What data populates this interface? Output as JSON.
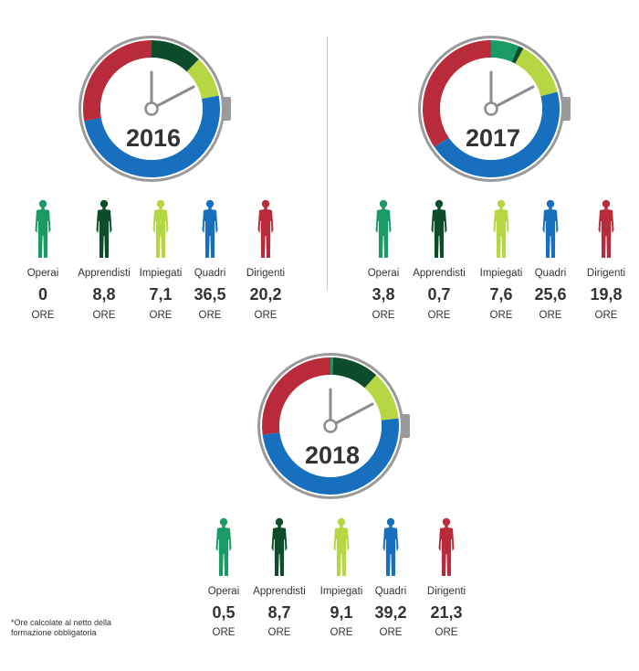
{
  "unit_label": "ORE",
  "footnote": [
    "*Ore calcolate al netto della",
    "formazione obbligatoria"
  ],
  "colors": {
    "Operai": "#1a9b66",
    "Apprendisti": "#0e4d2c",
    "Impiegati": "#b6d644",
    "Quadri": "#176fbd",
    "Dirigenti": "#b92a3a",
    "bezel": "#9a9a9a",
    "hands": "#8c8c8c"
  },
  "chart_data": [
    {
      "type": "pie",
      "title": "2016",
      "categories": [
        "Operai",
        "Apprendisti",
        "Impiegati",
        "Quadri",
        "Dirigenti"
      ],
      "values": [
        "0",
        "8,8",
        "7,1",
        "36,5",
        "20,2"
      ],
      "unit": "ORE"
    },
    {
      "type": "pie",
      "title": "2017",
      "categories": [
        "Operai",
        "Apprendisti",
        "Impiegati",
        "Quadri",
        "Dirigenti"
      ],
      "values": [
        "3,8",
        "0,7",
        "7,6",
        "25,6",
        "19,8"
      ],
      "unit": "ORE"
    },
    {
      "type": "pie",
      "title": "2018",
      "categories": [
        "Operai",
        "Apprendisti",
        "Impiegati",
        "Quadri",
        "Dirigenti"
      ],
      "values": [
        "0,5",
        "8,7",
        "9,1",
        "39,2",
        "21,3"
      ],
      "unit": "ORE"
    }
  ]
}
